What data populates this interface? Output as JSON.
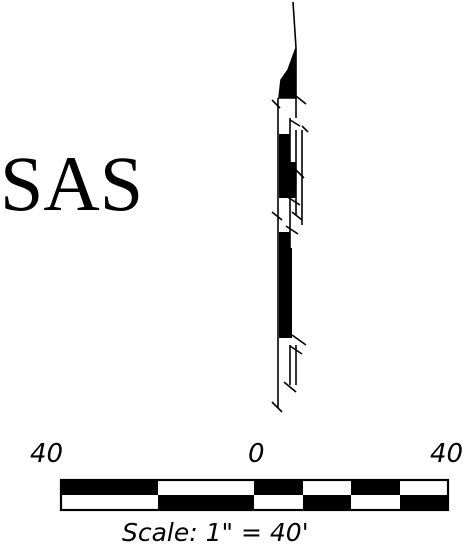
{
  "label_main": "SAS",
  "scale_bar": {
    "tick_labels": [
      "40",
      "0",
      "40"
    ],
    "caption": "Scale: 1\" = 40'"
  },
  "colors": {
    "ink": "#000000",
    "paper": "#ffffff"
  }
}
